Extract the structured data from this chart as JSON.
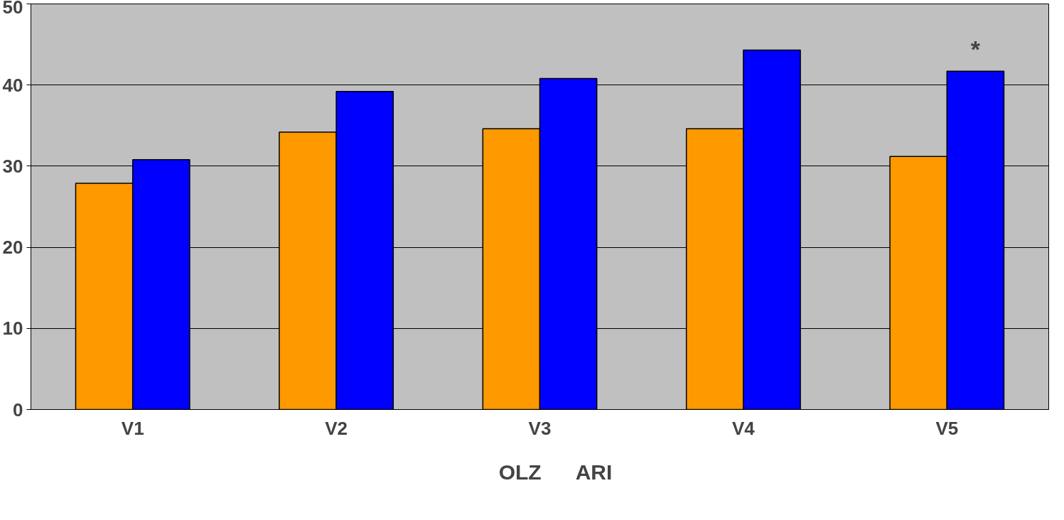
{
  "chart_data": {
    "type": "bar",
    "categories": [
      "V1",
      "V2",
      "V3",
      "V4",
      "V5"
    ],
    "series": [
      {
        "name": "OLZ",
        "color": "#ff9900",
        "values": [
          27.9,
          34.2,
          34.6,
          34.6,
          31.2
        ]
      },
      {
        "name": "ARI",
        "color": "#0000ff",
        "values": [
          30.8,
          39.2,
          40.8,
          44.3,
          41.7
        ]
      }
    ],
    "ylim": [
      0,
      50
    ],
    "yticks": [
      0,
      10,
      20,
      30,
      40,
      50
    ],
    "grid": "y",
    "legend": "bottom",
    "annotations": [
      "*"
    ]
  }
}
